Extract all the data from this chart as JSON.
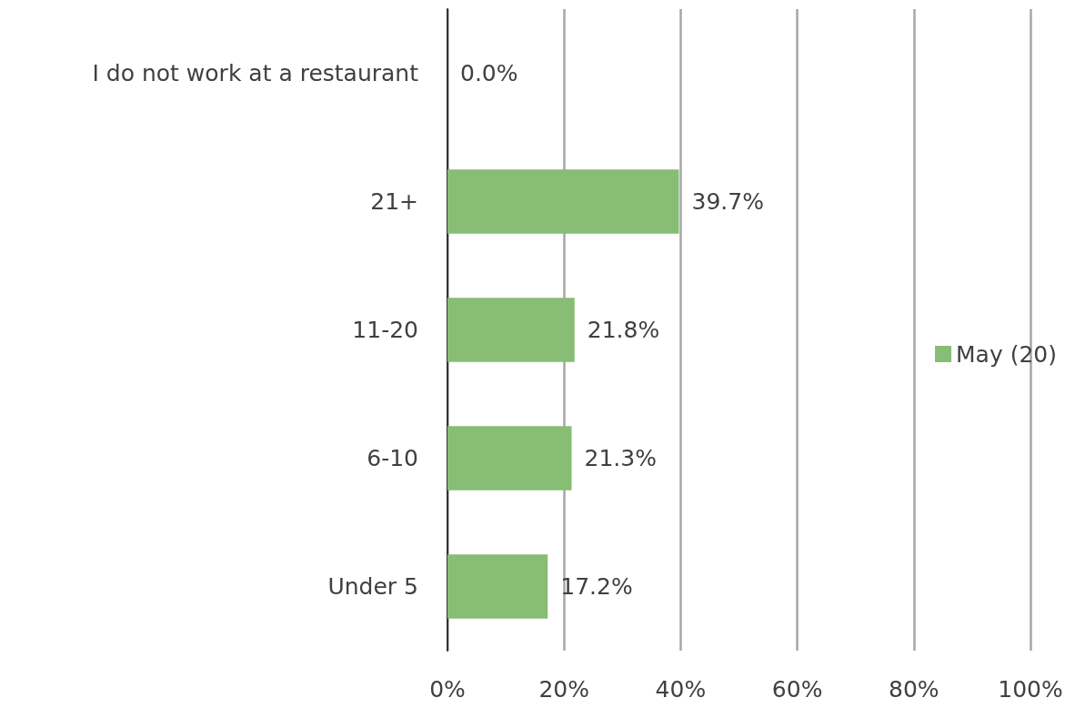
{
  "chart_data": {
    "type": "bar",
    "orientation": "horizontal",
    "categories": [
      "I do not work at a restaurant",
      "21+",
      "11-20",
      "6-10",
      "Under 5"
    ],
    "series": [
      {
        "name": "May (20)",
        "color": "#87bd74",
        "values": [
          0.0,
          39.7,
          21.8,
          21.3,
          17.2
        ],
        "value_labels": [
          "0.0%",
          "39.7%",
          "21.8%",
          "21.3%",
          "17.2%"
        ]
      }
    ],
    "xlim": [
      0,
      100
    ],
    "xticks": [
      {
        "value": 0,
        "label": "0%"
      },
      {
        "value": 20,
        "label": "20%"
      },
      {
        "value": 40,
        "label": "40%"
      },
      {
        "value": 60,
        "label": "60%"
      },
      {
        "value": 80,
        "label": "80%"
      },
      {
        "value": 100,
        "label": "100%"
      }
    ],
    "grid": "x",
    "legend": "right"
  }
}
